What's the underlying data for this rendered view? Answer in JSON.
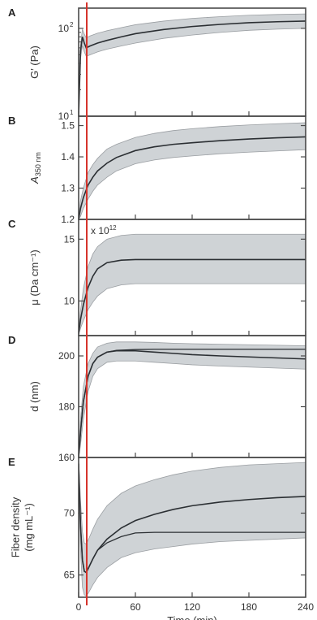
{
  "colors": {
    "frame": "#4a4a4a",
    "band": "#cfd3d6",
    "band_edge": "#9a9ea2",
    "mean_line": "#2b2f33",
    "marker": "#d6342c"
  },
  "chart_data": [
    {
      "type": "area",
      "panel": "A",
      "ylabel": "G′ (Pa)",
      "yscale": "log",
      "ylim": [
        10,
        170
      ],
      "yticks": [
        {
          "base": "10",
          "exp": "1",
          "value": 10
        },
        {
          "base": "10",
          "exp": "2",
          "value": 100
        }
      ],
      "xlim": [
        0,
        240
      ],
      "x": [
        0,
        2,
        4,
        6,
        8,
        12,
        20,
        30,
        45,
        60,
        90,
        120,
        150,
        180,
        210,
        240
      ],
      "mean": [
        10,
        55,
        80,
        68,
        60,
        63,
        68,
        73,
        80,
        87,
        97,
        105,
        111,
        116,
        119,
        121
      ],
      "upper": [
        10,
        65,
        98,
        86,
        78,
        82,
        88,
        94,
        102,
        110,
        121,
        130,
        136,
        141,
        144,
        146
      ],
      "lower": [
        10,
        45,
        64,
        54,
        48,
        50,
        54,
        58,
        63,
        68,
        77,
        84,
        90,
        95,
        98,
        100
      ]
    },
    {
      "type": "area",
      "panel": "B",
      "ylabel": "A350 nm",
      "ylabel_main": "A",
      "ylabel_sub": "350 nm",
      "ylim": [
        1.2,
        1.53
      ],
      "yticks": [
        {
          "label": "1.2",
          "value": 1.2
        },
        {
          "label": "1.3",
          "value": 1.3
        },
        {
          "label": "1.4",
          "value": 1.4
        },
        {
          "label": "1.5",
          "value": 1.5
        }
      ],
      "xlim": [
        0,
        240
      ],
      "x": [
        0,
        2,
        5,
        10,
        15,
        20,
        30,
        40,
        60,
        80,
        100,
        120,
        150,
        180,
        210,
        240
      ],
      "mean": [
        1.2,
        1.235,
        1.27,
        1.31,
        1.335,
        1.355,
        1.38,
        1.398,
        1.42,
        1.432,
        1.44,
        1.445,
        1.452,
        1.457,
        1.461,
        1.464
      ],
      "upper": [
        1.2,
        1.26,
        1.3,
        1.35,
        1.375,
        1.395,
        1.425,
        1.44,
        1.462,
        1.475,
        1.484,
        1.49,
        1.497,
        1.502,
        1.506,
        1.509
      ],
      "lower": [
        1.2,
        1.21,
        1.235,
        1.265,
        1.29,
        1.31,
        1.335,
        1.355,
        1.378,
        1.39,
        1.398,
        1.403,
        1.41,
        1.415,
        1.419,
        1.423
      ]
    },
    {
      "type": "area",
      "panel": "C",
      "ylabel": "μ (Da cm⁻¹)",
      "multiplier": {
        "base": "x 10",
        "exp": "12"
      },
      "ylim": [
        7.2,
        16.6
      ],
      "yticks": [
        {
          "label": "10",
          "value": 10
        },
        {
          "label": "15",
          "value": 15
        }
      ],
      "xlim": [
        0,
        240
      ],
      "x": [
        0,
        2,
        5,
        10,
        15,
        20,
        30,
        45,
        60,
        80,
        100,
        120,
        150,
        180,
        210,
        240
      ],
      "mean": [
        7.3,
        8.5,
        9.7,
        11.1,
        12.0,
        12.6,
        13.1,
        13.3,
        13.35,
        13.35,
        13.35,
        13.35,
        13.35,
        13.35,
        13.35,
        13.35
      ],
      "upper": [
        7.5,
        9.2,
        11.0,
        12.8,
        13.8,
        14.4,
        15.0,
        15.3,
        15.4,
        15.4,
        15.4,
        15.4,
        15.4,
        15.4,
        15.4,
        15.4
      ],
      "lower": [
        7.3,
        7.8,
        8.4,
        9.3,
        9.9,
        10.4,
        11.0,
        11.3,
        11.4,
        11.4,
        11.4,
        11.4,
        11.4,
        11.4,
        11.4,
        11.4
      ]
    },
    {
      "type": "area",
      "panel": "D",
      "ylabel": "d (nm)",
      "ylim": [
        160,
        208
      ],
      "yticks": [
        {
          "label": "160",
          "value": 160
        },
        {
          "label": "180",
          "value": 180
        },
        {
          "label": "200",
          "value": 200
        }
      ],
      "xlim": [
        0,
        240
      ],
      "x": [
        0,
        2,
        5,
        10,
        15,
        20,
        30,
        40,
        60,
        80,
        100,
        120,
        150,
        180,
        210,
        240
      ],
      "mean": [
        160,
        170,
        182,
        192,
        197,
        199.5,
        201.5,
        202,
        202,
        201.5,
        201,
        200.5,
        200,
        199.6,
        199.2,
        198.8
      ],
      "mean2": [
        160,
        170,
        182,
        192,
        197,
        199.5,
        201.5,
        202.2,
        202.5,
        202.6,
        202.6,
        202.6,
        202.6,
        202.6,
        202.6,
        202.6
      ],
      "upper": [
        160,
        175,
        188,
        197,
        201,
        203.5,
        205,
        205.5,
        205.5,
        205.3,
        205,
        204.8,
        204.6,
        204.4,
        204.2,
        204
      ],
      "lower": [
        160,
        165,
        175,
        186,
        192,
        195,
        197.5,
        198,
        198,
        197.5,
        197,
        196.5,
        196,
        195.6,
        195.2,
        194.8
      ]
    },
    {
      "type": "area",
      "panel": "E",
      "ylabel_lines": [
        "Fiber density",
        "(mg mL⁻¹)"
      ],
      "ylim": [
        63.2,
        74.5
      ],
      "yticks": [
        {
          "label": "65",
          "value": 65
        },
        {
          "label": "70",
          "value": 70
        }
      ],
      "xlim": [
        0,
        240
      ],
      "xticks": [
        {
          "label": "0",
          "value": 0
        },
        {
          "label": "60",
          "value": 60
        },
        {
          "label": "120",
          "value": 120
        },
        {
          "label": "180",
          "value": 180
        },
        {
          "label": "240",
          "value": 240
        }
      ],
      "xlabel": "Time (min)",
      "x": [
        0,
        2,
        4,
        6,
        8,
        10,
        15,
        20,
        30,
        45,
        60,
        80,
        100,
        120,
        150,
        180,
        210,
        240
      ],
      "mean": [
        74,
        69,
        66.2,
        65.3,
        65.2,
        65.5,
        66.3,
        67.0,
        67.9,
        68.8,
        69.4,
        69.9,
        70.3,
        70.6,
        70.9,
        71.1,
        71.25,
        71.35
      ],
      "mean2": [
        74,
        69,
        66.2,
        65.3,
        65.2,
        65.5,
        66.3,
        67.0,
        67.6,
        68.1,
        68.4,
        68.45,
        68.45,
        68.45,
        68.45,
        68.45,
        68.45,
        68.45
      ],
      "upper": [
        74.4,
        71.0,
        68.5,
        67.6,
        67.5,
        67.8,
        68.7,
        69.5,
        70.6,
        71.6,
        72.2,
        72.7,
        73.1,
        73.4,
        73.7,
        73.9,
        74.0,
        74.1
      ],
      "lower": [
        73.5,
        67.0,
        64.0,
        63.4,
        63.3,
        63.5,
        64.2,
        64.8,
        65.6,
        66.4,
        66.8,
        67.1,
        67.3,
        67.5,
        67.7,
        67.8,
        67.9,
        68.0
      ]
    }
  ]
}
